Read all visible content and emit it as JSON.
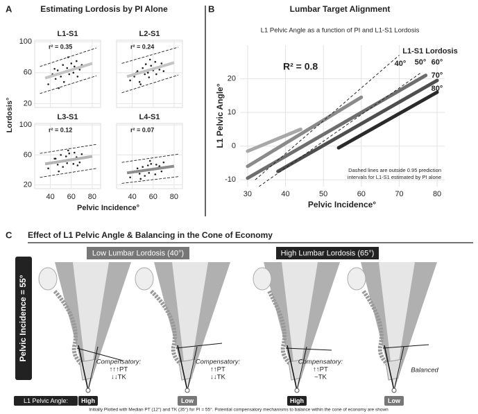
{
  "panel_labels": [
    "A",
    "B",
    "C"
  ],
  "panel_a": {
    "title": "Estimating Lordosis by PI Alone",
    "ylabel": "Lordosis°",
    "xlabel": "Pelvic Incidence°"
  },
  "chart_data": [
    {
      "type": "scatter",
      "title": "L1-S1",
      "annotation": "r² = 0.35",
      "color": "#222222",
      "fit_color": "#c4c4c4",
      "x": [
        38,
        42,
        45,
        47,
        50,
        52,
        53,
        55,
        56,
        58,
        60,
        62,
        63,
        65,
        68,
        70,
        48,
        57,
        44,
        66
      ],
      "y": [
        45,
        58,
        52,
        63,
        55,
        70,
        48,
        62,
        66,
        58,
        72,
        60,
        68,
        75,
        64,
        70,
        40,
        80,
        65,
        55
      ],
      "fit": {
        "x": [
          35,
          80
        ],
        "y": [
          53,
          72
        ]
      },
      "interval": [
        {
          "x": [
            30,
            84
          ],
          "y": [
            68,
            92
          ]
        },
        {
          "x": [
            30,
            84
          ],
          "y": [
            33,
            56
          ]
        }
      ],
      "xlim": [
        25,
        88
      ],
      "ylim": [
        15,
        102
      ],
      "xticks": [
        40,
        60,
        80
      ],
      "yticks": [
        20,
        60,
        100
      ],
      "grid": true
    },
    {
      "type": "scatter",
      "title": "L2-S1",
      "annotation": "r² = 0.24",
      "color": "#222222",
      "fit_color": "#c4c4c4",
      "x": [
        38,
        42,
        45,
        47,
        50,
        52,
        53,
        55,
        56,
        58,
        60,
        62,
        63,
        65,
        68,
        70,
        48,
        57,
        44,
        66
      ],
      "y": [
        50,
        55,
        62,
        48,
        66,
        58,
        71,
        60,
        54,
        69,
        63,
        74,
        58,
        67,
        72,
        62,
        45,
        77,
        60,
        64
      ],
      "fit": {
        "x": [
          35,
          80
        ],
        "y": [
          55,
          73
        ]
      },
      "interval": [
        {
          "x": [
            30,
            84
          ],
          "y": [
            72,
            93
          ]
        },
        {
          "x": [
            30,
            84
          ],
          "y": [
            34,
            57
          ]
        }
      ],
      "xlim": [
        25,
        88
      ],
      "ylim": [
        15,
        102
      ],
      "xticks": [
        40,
        60,
        80
      ],
      "yticks": [
        20,
        60,
        100
      ],
      "grid": true
    },
    {
      "type": "scatter",
      "title": "L3-S1",
      "annotation": "r² = 0.12",
      "color": "#222222",
      "fit_color": "#b4b4b4",
      "x": [
        38,
        42,
        45,
        47,
        50,
        52,
        53,
        55,
        56,
        58,
        60,
        62,
        63,
        65,
        68,
        70,
        48,
        57,
        44,
        66
      ],
      "y": [
        42,
        50,
        55,
        47,
        60,
        44,
        52,
        58,
        49,
        62,
        54,
        48,
        63,
        57,
        50,
        61,
        38,
        66,
        55,
        46
      ],
      "fit": {
        "x": [
          35,
          80
        ],
        "y": [
          48,
          58
        ]
      },
      "interval": [
        {
          "x": [
            30,
            84
          ],
          "y": [
            62,
            74
          ]
        },
        {
          "x": [
            30,
            84
          ],
          "y": [
            30,
            42
          ]
        }
      ],
      "xlim": [
        25,
        88
      ],
      "ylim": [
        15,
        102
      ],
      "xticks": [
        40,
        60,
        80
      ],
      "yticks": [
        20,
        60,
        100
      ],
      "grid": true
    },
    {
      "type": "scatter",
      "title": "L4-S1",
      "annotation": "r² = 0.07",
      "color": "#222222",
      "fit_color": "#8c8c8c",
      "x": [
        38,
        42,
        45,
        47,
        50,
        52,
        53,
        55,
        56,
        58,
        60,
        62,
        63,
        65,
        68,
        70,
        48,
        57,
        44,
        66
      ],
      "y": [
        30,
        38,
        42,
        35,
        44,
        32,
        40,
        46,
        36,
        48,
        41,
        34,
        47,
        43,
        38,
        50,
        28,
        52,
        37,
        45
      ],
      "fit": {
        "x": [
          35,
          80
        ],
        "y": [
          36,
          45
        ]
      },
      "interval": [
        {
          "x": [
            30,
            84
          ],
          "y": [
            50,
            61
          ]
        },
        {
          "x": [
            30,
            84
          ],
          "y": [
            22,
            31
          ]
        }
      ],
      "xlim": [
        25,
        88
      ],
      "ylim": [
        15,
        102
      ],
      "xticks": [
        40,
        60,
        80
      ],
      "yticks": [
        20,
        60,
        100
      ],
      "grid": true
    },
    {
      "type": "line",
      "title": "Lumbar Target Alignment",
      "subtitle": "L1 Pelvic Angle as a function of PI and L1-S1 Lordosis",
      "xlabel": "Pelvic Incidence°",
      "ylabel": "L1 Pelvic Angle°",
      "annotation": "R² = 0.8",
      "legend_title": "L1-S1 Lordosis",
      "note": [
        "Dashed lines are outside 0.95 prediction",
        "intervals for L1-S1 estimated by PI alone"
      ],
      "series": [
        {
          "name": "40°",
          "color": "#a8a8a8",
          "x": [
            30,
            44
          ],
          "values": [
            -1.5,
            5
          ]
        },
        {
          "name": "50°",
          "color": "#8a8a8a",
          "x": [
            30,
            60
          ],
          "values": [
            -6,
            14.5
          ]
        },
        {
          "name": "60°",
          "color": "#6e6e6e",
          "x": [
            30,
            77
          ],
          "values": [
            -9.5,
            21
          ]
        },
        {
          "name": "70°",
          "color": "#4e4e4e",
          "x": [
            38,
            80
          ],
          "values": [
            -7.5,
            19.5
          ]
        },
        {
          "name": "80°",
          "color": "#2a2a2a",
          "x": [
            54,
            80
          ],
          "values": [
            -0.5,
            16
          ]
        }
      ],
      "prediction_limits": [
        {
          "x": [
            32,
            70
          ],
          "values": [
            -10,
            27
          ]
        },
        {
          "x": [
            33,
            76
          ],
          "values": [
            -12,
            22
          ]
        }
      ],
      "xlim": [
        28,
        82
      ],
      "ylim": [
        -12,
        30
      ],
      "xticks": [
        30,
        40,
        50,
        60,
        70,
        80
      ],
      "yticks": [
        -10,
        0,
        10,
        20
      ],
      "grid": true
    }
  ],
  "panel_c": {
    "title": "Effect of L1 Pelvic Angle & Balancing in the Cone of Economy",
    "groups": [
      "Low Lumbar Lordosis (40°)",
      "High Lumbar Lordosis (65°)"
    ],
    "side_label": "Pelvic Incidence = 55°",
    "angle_label": "L1 Pelvic Angle:",
    "figures": [
      {
        "angle": "High",
        "note": [
          "Compensatory:",
          "↑↑↑PT",
          "↓↓TK"
        ]
      },
      {
        "angle": "Low",
        "note": [
          "Compensatory:",
          "↑↑PT",
          "↓↓TK"
        ]
      },
      {
        "angle": "High",
        "note": [
          "Compensatory:",
          "↑↑PT",
          "~TK"
        ]
      },
      {
        "angle": "Low",
        "note": [
          "Balanced"
        ]
      }
    ],
    "footnote": "Initially Plotted with Median PT (12°) and TK (35°) for PI = 55°. Potential compensatory mechanisms to balance within the cone of economy are shown"
  }
}
